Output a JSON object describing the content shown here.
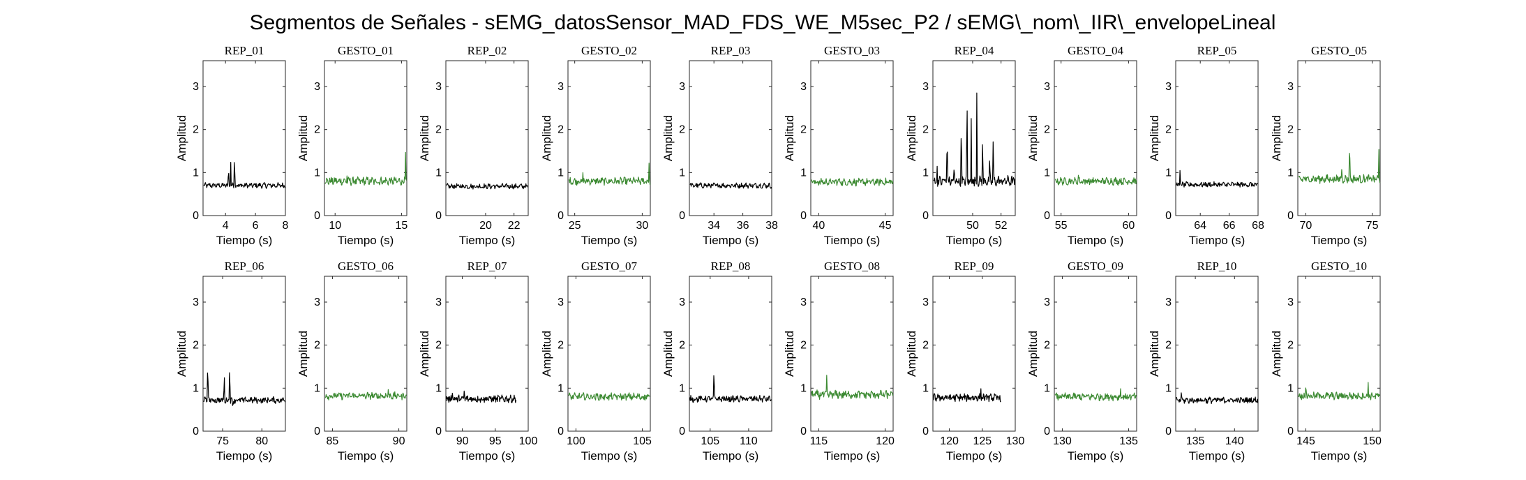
{
  "figure": {
    "title": "Segmentos de Señales - sEMG_datosSensor_MAD_FDS_WE_M5sec_P2 / sEMG\\_nom\\_IIR\\_envelopeLineal"
  },
  "colors": {
    "rep": "#000000",
    "gesto": "#3c8a32"
  },
  "chart_data": [
    {
      "type": "line",
      "title": "REP_01",
      "xlabel": "Tiempo (s)",
      "ylabel": "Amplitud",
      "xlim": [
        2.5,
        8
      ],
      "ylim": [
        0,
        3.6
      ],
      "xticks": [
        4,
        6,
        8
      ],
      "yticks": [
        0,
        1,
        2,
        3
      ],
      "color": "#000000",
      "mean": 0.7,
      "noise": 0.05,
      "spikes": [
        [
          4.2,
          0.55
        ],
        [
          4.6,
          1.05
        ],
        [
          4.35,
          0.6
        ]
      ]
    },
    {
      "type": "line",
      "title": "GESTO_01",
      "xlabel": "Tiempo (s)",
      "ylabel": "Amplitud",
      "xlim": [
        9.2,
        15.4
      ],
      "ylim": [
        0,
        3.6
      ],
      "xticks": [
        10,
        15
      ],
      "yticks": [
        0,
        1,
        2,
        3
      ],
      "color": "#3c8a32",
      "mean": 0.8,
      "noise": 0.08,
      "spikes": [
        [
          15.3,
          0.75
        ],
        [
          10.9,
          0.15
        ]
      ]
    },
    {
      "type": "line",
      "title": "REP_02",
      "xlabel": "Tiempo (s)",
      "ylabel": "Amplitud",
      "xlim": [
        17.2,
        23
      ],
      "ylim": [
        0,
        3.6
      ],
      "xticks": [
        20,
        22
      ],
      "yticks": [
        0,
        1,
        2,
        3
      ],
      "color": "#000000",
      "mean": 0.68,
      "noise": 0.05,
      "spikes": []
    },
    {
      "type": "line",
      "title": "GESTO_02",
      "xlabel": "Tiempo (s)",
      "ylabel": "Amplitud",
      "xlim": [
        24.5,
        30.6
      ],
      "ylim": [
        0,
        3.6
      ],
      "xticks": [
        25,
        30
      ],
      "yticks": [
        0,
        1,
        2,
        3
      ],
      "color": "#3c8a32",
      "mean": 0.8,
      "noise": 0.07,
      "spikes": [
        [
          30.5,
          0.5
        ],
        [
          25.6,
          0.15
        ]
      ]
    },
    {
      "type": "line",
      "title": "REP_03",
      "xlabel": "Tiempo (s)",
      "ylabel": "Amplitud",
      "xlim": [
        32.3,
        38
      ],
      "ylim": [
        0,
        3.6
      ],
      "xticks": [
        34,
        36,
        38
      ],
      "yticks": [
        0,
        1,
        2,
        3
      ],
      "color": "#000000",
      "mean": 0.7,
      "noise": 0.05,
      "spikes": []
    },
    {
      "type": "line",
      "title": "GESTO_03",
      "xlabel": "Tiempo (s)",
      "ylabel": "Amplitud",
      "xlim": [
        39.4,
        45.6
      ],
      "ylim": [
        0,
        3.6
      ],
      "xticks": [
        40,
        45
      ],
      "yticks": [
        0,
        1,
        2,
        3
      ],
      "color": "#3c8a32",
      "mean": 0.78,
      "noise": 0.07,
      "spikes": [
        [
          41.5,
          0.15
        ]
      ]
    },
    {
      "type": "line",
      "title": "REP_04",
      "xlabel": "Tiempo (s)",
      "ylabel": "Amplitud",
      "xlim": [
        47.2,
        53
      ],
      "ylim": [
        0,
        3.6
      ],
      "xticks": [
        50,
        52
      ],
      "yticks": [
        0,
        1,
        2,
        3
      ],
      "color": "#000000",
      "mean": 0.8,
      "noise": 0.1,
      "spikes": [
        [
          48.2,
          1.6
        ],
        [
          48.7,
          0.4
        ],
        [
          49.2,
          1.8
        ],
        [
          49.6,
          2.7
        ],
        [
          49.9,
          1.5
        ],
        [
          50.3,
          2.5
        ],
        [
          50.7,
          1.4
        ],
        [
          51.2,
          0.5
        ],
        [
          51.45,
          1.3
        ],
        [
          47.5,
          0.4
        ]
      ]
    },
    {
      "type": "line",
      "title": "GESTO_04",
      "xlabel": "Tiempo (s)",
      "ylabel": "Amplitud",
      "xlim": [
        54.5,
        60.6
      ],
      "ylim": [
        0,
        3.6
      ],
      "xticks": [
        55,
        60
      ],
      "yticks": [
        0,
        1,
        2,
        3
      ],
      "color": "#3c8a32",
      "mean": 0.8,
      "noise": 0.07,
      "spikes": [
        [
          56.3,
          0.2
        ]
      ]
    },
    {
      "type": "line",
      "title": "REP_05",
      "xlabel": "Tiempo (s)",
      "ylabel": "Amplitud",
      "xlim": [
        62.3,
        68
      ],
      "ylim": [
        0,
        3.6
      ],
      "xticks": [
        64,
        66,
        68
      ],
      "yticks": [
        0,
        1,
        2,
        3
      ],
      "color": "#000000",
      "mean": 0.72,
      "noise": 0.05,
      "spikes": [
        [
          62.6,
          0.35
        ]
      ]
    },
    {
      "type": "line",
      "title": "GESTO_05",
      "xlabel": "Tiempo (s)",
      "ylabel": "Amplitud",
      "xlim": [
        69.4,
        75.6
      ],
      "ylim": [
        0,
        3.6
      ],
      "xticks": [
        70,
        75
      ],
      "yticks": [
        0,
        1,
        2,
        3
      ],
      "color": "#3c8a32",
      "mean": 0.85,
      "noise": 0.08,
      "spikes": [
        [
          73.3,
          1.2
        ],
        [
          72.7,
          0.3
        ],
        [
          75.5,
          0.75
        ]
      ]
    },
    {
      "type": "line",
      "title": "REP_06",
      "xlabel": "Tiempo (s)",
      "ylabel": "Amplitud",
      "xlim": [
        72.5,
        83
      ],
      "ylim": [
        0,
        3.6
      ],
      "xticks": [
        75,
        80
      ],
      "yticks": [
        0,
        1,
        2,
        3
      ],
      "color": "#000000",
      "mean": 0.72,
      "noise": 0.06,
      "spikes": [
        [
          73.1,
          1.3
        ],
        [
          75.2,
          0.8
        ],
        [
          75.9,
          1.2
        ],
        [
          76.3,
          -0.2
        ]
      ]
    },
    {
      "type": "line",
      "title": "GESTO_06",
      "xlabel": "Tiempo (s)",
      "ylabel": "Amplitud",
      "xlim": [
        84.4,
        90.6
      ],
      "ylim": [
        0,
        3.6
      ],
      "xticks": [
        85,
        90
      ],
      "yticks": [
        0,
        1,
        2,
        3
      ],
      "color": "#3c8a32",
      "mean": 0.82,
      "noise": 0.07,
      "spikes": [
        [
          89.2,
          0.2
        ]
      ]
    },
    {
      "type": "line",
      "title": "REP_07",
      "xlabel": "Tiempo (s)",
      "ylabel": "Amplitud",
      "xlim": [
        87.5,
        100
      ],
      "ylim": [
        0,
        3.6
      ],
      "xticks": [
        90,
        95,
        100
      ],
      "yticks": [
        0,
        1,
        2,
        3
      ],
      "color": "#000000",
      "mean": 0.75,
      "noise": 0.07,
      "spikes": [
        [
          88.5,
          0.3
        ],
        [
          90.3,
          0.3
        ]
      ],
      "xend": 98.2
    },
    {
      "type": "line",
      "title": "GESTO_07",
      "xlabel": "Tiempo (s)",
      "ylabel": "Amplitud",
      "xlim": [
        99.4,
        105.6
      ],
      "ylim": [
        0,
        3.6
      ],
      "xticks": [
        100,
        105
      ],
      "yticks": [
        0,
        1,
        2,
        3
      ],
      "color": "#3c8a32",
      "mean": 0.8,
      "noise": 0.07,
      "spikes": []
    },
    {
      "type": "line",
      "title": "REP_08",
      "xlabel": "Tiempo (s)",
      "ylabel": "Amplitud",
      "xlim": [
        102.3,
        113
      ],
      "ylim": [
        0,
        3.6
      ],
      "xticks": [
        105,
        110
      ],
      "yticks": [
        0,
        1,
        2,
        3
      ],
      "color": "#000000",
      "mean": 0.75,
      "noise": 0.06,
      "spikes": [
        [
          105.5,
          0.9
        ]
      ]
    },
    {
      "type": "line",
      "title": "GESTO_08",
      "xlabel": "Tiempo (s)",
      "ylabel": "Amplitud",
      "xlim": [
        114.4,
        120.6
      ],
      "ylim": [
        0,
        3.6
      ],
      "xticks": [
        115,
        120
      ],
      "yticks": [
        0,
        1,
        2,
        3
      ],
      "color": "#3c8a32",
      "mean": 0.85,
      "noise": 0.08,
      "spikes": [
        [
          115.6,
          0.4
        ]
      ]
    },
    {
      "type": "line",
      "title": "REP_09",
      "xlabel": "Tiempo (s)",
      "ylabel": "Amplitud",
      "xlim": [
        117.5,
        130
      ],
      "ylim": [
        0,
        3.6
      ],
      "xticks": [
        120,
        125,
        130
      ],
      "yticks": [
        0,
        1,
        2,
        3
      ],
      "color": "#000000",
      "mean": 0.78,
      "noise": 0.07,
      "spikes": [
        [
          124.8,
          0.3
        ]
      ],
      "xend": 127.8
    },
    {
      "type": "line",
      "title": "GESTO_09",
      "xlabel": "Tiempo (s)",
      "ylabel": "Amplitud",
      "xlim": [
        129.4,
        135.6
      ],
      "ylim": [
        0,
        3.6
      ],
      "xticks": [
        130,
        135
      ],
      "yticks": [
        0,
        1,
        2,
        3
      ],
      "color": "#3c8a32",
      "mean": 0.8,
      "noise": 0.07,
      "spikes": [
        [
          134.4,
          0.2
        ]
      ]
    },
    {
      "type": "line",
      "title": "REP_10",
      "xlabel": "Tiempo (s)",
      "ylabel": "Amplitud",
      "xlim": [
        132.5,
        143
      ],
      "ylim": [
        0,
        3.6
      ],
      "xticks": [
        135,
        140
      ],
      "yticks": [
        0,
        1,
        2,
        3
      ],
      "color": "#000000",
      "mean": 0.72,
      "noise": 0.06,
      "spikes": [
        [
          133.2,
          0.2
        ]
      ]
    },
    {
      "type": "line",
      "title": "GESTO_10",
      "xlabel": "Tiempo (s)",
      "ylabel": "Amplitud",
      "xlim": [
        144.4,
        150.6
      ],
      "ylim": [
        0,
        3.6
      ],
      "xticks": [
        145,
        150
      ],
      "yticks": [
        0,
        1,
        2,
        3
      ],
      "color": "#3c8a32",
      "mean": 0.82,
      "noise": 0.07,
      "spikes": [
        [
          145.0,
          0.4
        ],
        [
          149.7,
          0.3
        ]
      ]
    }
  ]
}
